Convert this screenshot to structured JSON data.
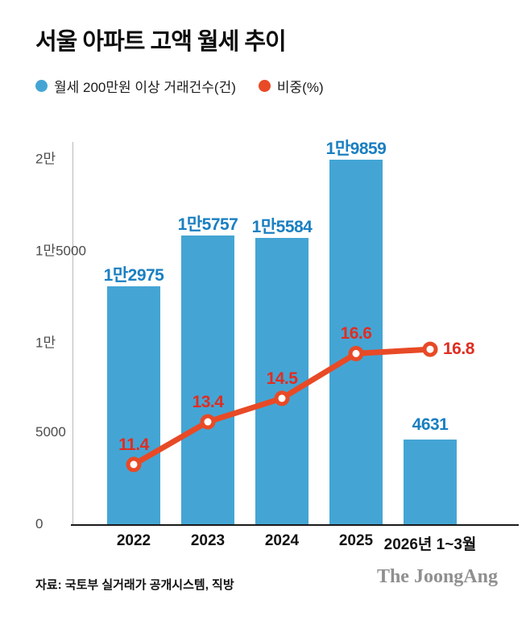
{
  "title": "서울 아파트 고액 월세 추이",
  "legend": [
    {
      "label": "월세 200만원 이상 거래건수(건)",
      "color": "#44a5d4"
    },
    {
      "label": "비중(%)",
      "color": "#e84a26"
    }
  ],
  "chart_data": {
    "type": "bar",
    "subtype": "bar+line-combo",
    "categories": [
      "2022",
      "2023",
      "2024",
      "2025",
      "2026년 1~3월"
    ],
    "series": [
      {
        "name": "월세 200만원 이상 거래건수(건)",
        "type": "bar",
        "values": [
          12975,
          15757,
          15584,
          19859,
          4631
        ],
        "value_labels": [
          "1만2975",
          "1만5757",
          "1만5584",
          "1만9859",
          "4631"
        ],
        "color": "#44a5d4",
        "label_color": "#1a7fc1"
      },
      {
        "name": "비중(%)",
        "type": "line",
        "values": [
          11.4,
          13.4,
          14.5,
          16.6,
          16.8
        ],
        "value_labels": [
          "11.4",
          "13.4",
          "14.5",
          "16.6",
          "16.8"
        ],
        "color": "#e84a26",
        "label_color": "#e02d22"
      }
    ],
    "y_axis": {
      "lim": [
        0,
        20000
      ],
      "ticks": [
        {
          "v": 0,
          "label": "0"
        },
        {
          "v": 5000,
          "label": "5000"
        },
        {
          "v": 10000,
          "label": "1만"
        },
        {
          "v": 15000,
          "label": "1만5000"
        },
        {
          "v": 20000,
          "label": "2만"
        }
      ]
    },
    "y2_axis": {
      "lim": [
        8.6,
        25.8
      ]
    },
    "grid": false,
    "legend_position": "top-left"
  },
  "source": "자료: 국토부 실거래가 공개시스템, 직방",
  "logo": "The JoongAng"
}
